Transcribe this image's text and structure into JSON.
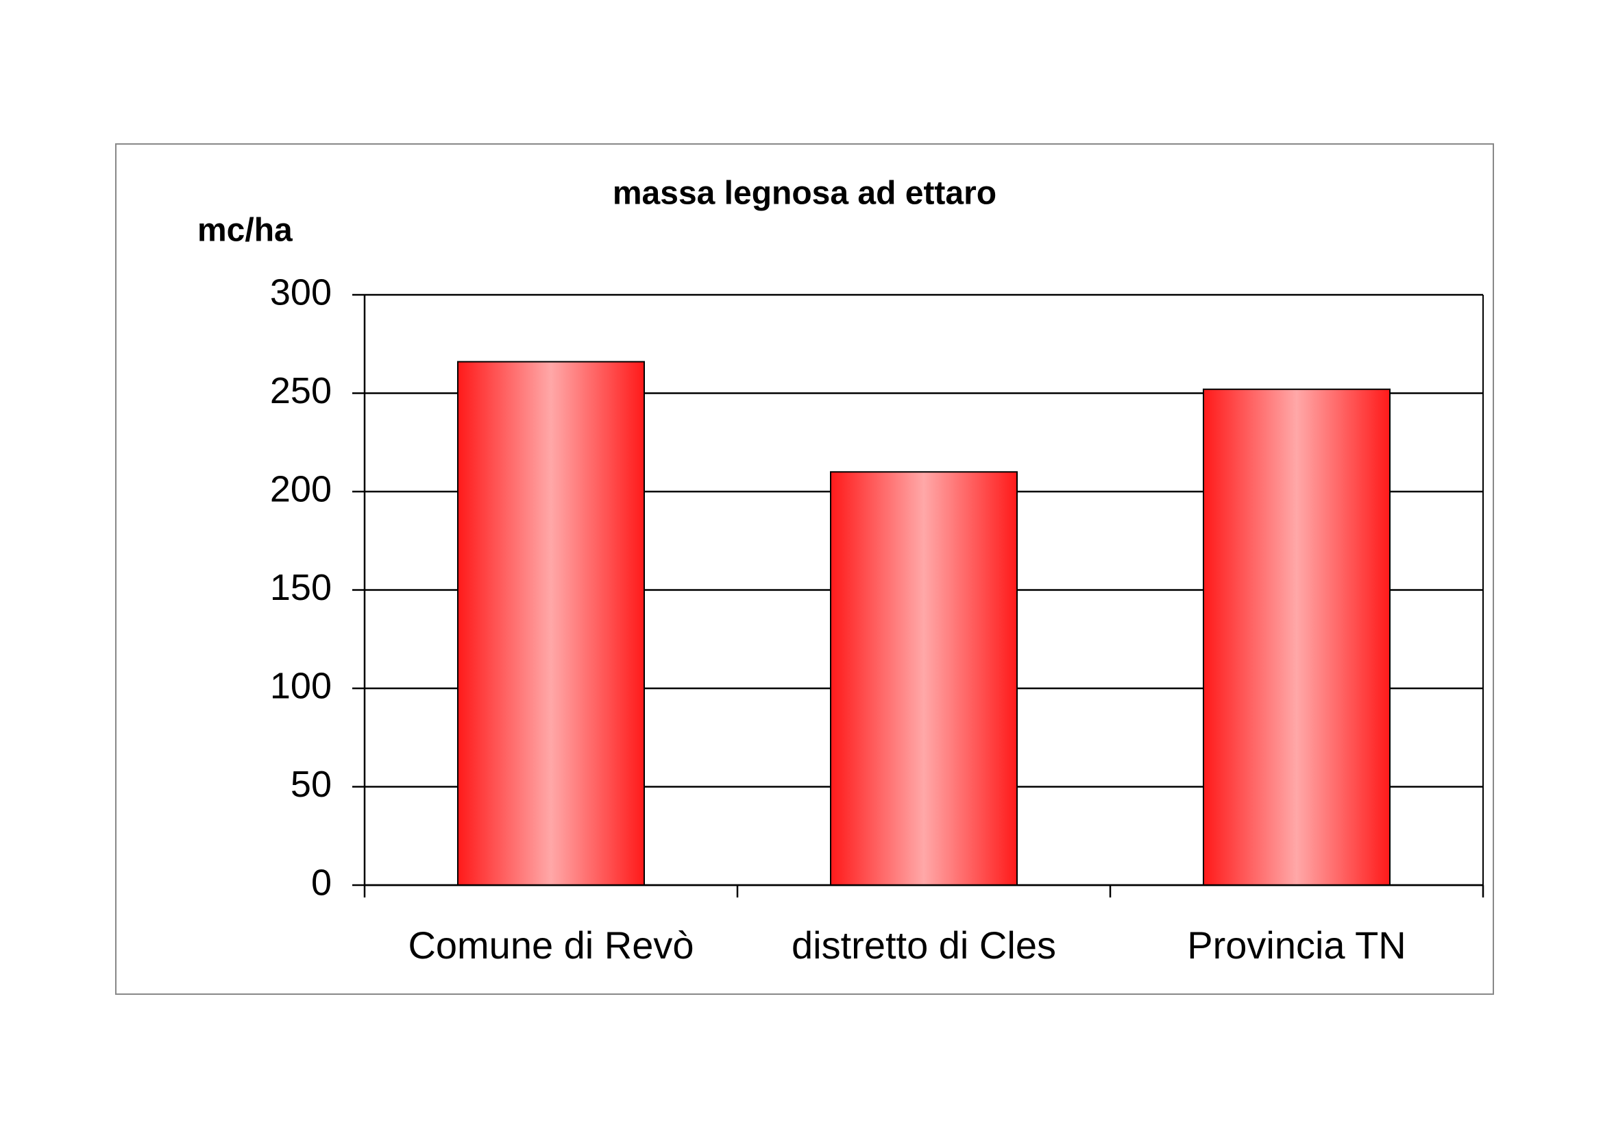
{
  "chart_data": {
    "type": "bar",
    "title": "massa legnosa ad ettaro",
    "y_label": "mc/ha",
    "categories": [
      "Comune di Revò",
      "distretto di Cles",
      "Provincia TN"
    ],
    "values": [
      266,
      210,
      252
    ],
    "color": "#ff1a1a",
    "ylim": [
      0,
      300
    ],
    "yticks": [
      0,
      50,
      100,
      150,
      200,
      250,
      300
    ],
    "grid": true
  }
}
